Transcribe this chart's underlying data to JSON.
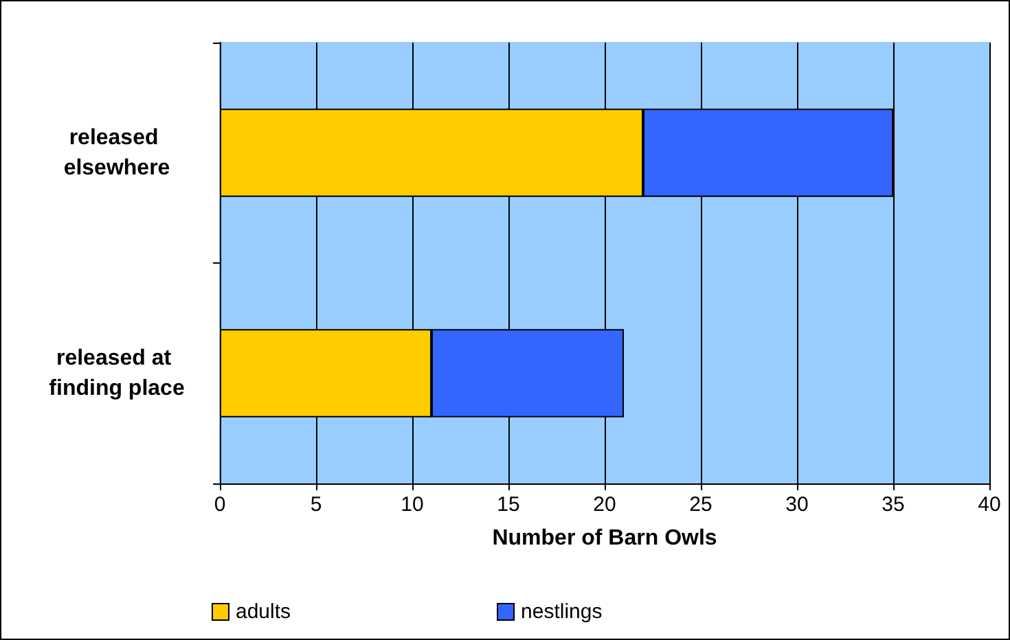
{
  "chart_data": {
    "type": "bar",
    "orientation": "horizontal",
    "stacked": true,
    "xlabel": "Number of Barn Owls",
    "categories": [
      "released elsewhere",
      "released at finding place"
    ],
    "series": [
      {
        "name": "adults",
        "color": "#ffcc00",
        "values": [
          22,
          11
        ]
      },
      {
        "name": "nestlings",
        "color": "#3366ff",
        "values": [
          13,
          10
        ]
      }
    ],
    "xlim": [
      0,
      40
    ],
    "xticks": [
      0,
      5,
      10,
      15,
      20,
      25,
      30,
      35,
      40
    ],
    "grid": "x",
    "legend": "bottom left"
  }
}
